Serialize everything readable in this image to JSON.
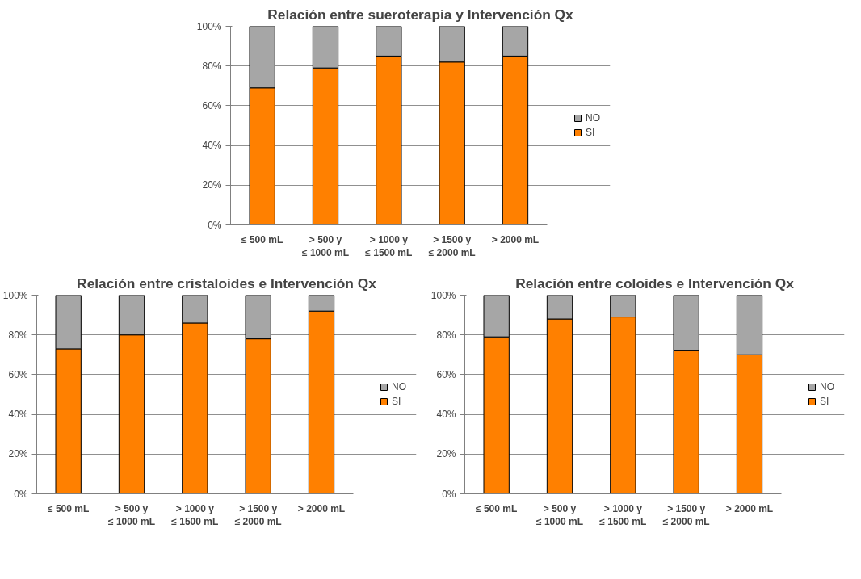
{
  "chart_data": [
    {
      "type": "bar",
      "title": "Relación entre sueroterapia y Intervención Qx",
      "categories": [
        "≤ 500 mL",
        "> 500 y\n≤ 1000 mL",
        "> 1000 y\n≤ 1500 mL",
        "> 1500 y\n≤ 2000 mL",
        "> 2000 mL"
      ],
      "stacked": true,
      "series": [
        {
          "name": "SI",
          "color": "#ff8000",
          "values": [
            69,
            79,
            85,
            82,
            85
          ]
        },
        {
          "name": "NO",
          "color": "#a6a6a6",
          "values": [
            31,
            21,
            15,
            18,
            15
          ]
        }
      ],
      "ylim": [
        0,
        100
      ],
      "yticks": [
        {
          "value": 0,
          "label": "0%"
        },
        {
          "value": 20,
          "label": "20%"
        },
        {
          "value": 40,
          "label": "40%"
        },
        {
          "value": 60,
          "label": "60%"
        },
        {
          "value": 80,
          "label": "80%"
        },
        {
          "value": 100,
          "label": "100%"
        }
      ],
      "grid": "y",
      "legend": "right"
    },
    {
      "type": "bar",
      "title": "Relación entre cristaloides e Intervención Qx",
      "categories": [
        "≤ 500 mL",
        "> 500 y\n≤ 1000 mL",
        "> 1000 y\n≤ 1500 mL",
        "> 1500 y\n≤ 2000 mL",
        "> 2000 mL"
      ],
      "stacked": true,
      "series": [
        {
          "name": "SI",
          "color": "#ff8000",
          "values": [
            73,
            80,
            86,
            78,
            92
          ]
        },
        {
          "name": "NO",
          "color": "#a6a6a6",
          "values": [
            27,
            20,
            14,
            22,
            8
          ]
        }
      ],
      "ylim": [
        0,
        100
      ],
      "yticks": [
        {
          "value": 0,
          "label": "0%"
        },
        {
          "value": 20,
          "label": "20%"
        },
        {
          "value": 40,
          "label": "40%"
        },
        {
          "value": 60,
          "label": "60%"
        },
        {
          "value": 80,
          "label": "80%"
        },
        {
          "value": 100,
          "label": "100%"
        }
      ],
      "grid": "y",
      "legend": "right"
    },
    {
      "type": "bar",
      "title": "Relación entre coloides e Intervención Qx",
      "categories": [
        "≤ 500 mL",
        "> 500 y\n≤ 1000 mL",
        "> 1000 y\n≤ 1500 mL",
        "> 1500 y\n≤ 2000 mL",
        "> 2000 mL"
      ],
      "stacked": true,
      "series": [
        {
          "name": "SI",
          "color": "#ff8000",
          "values": [
            79,
            88,
            89,
            72,
            70
          ]
        },
        {
          "name": "NO",
          "color": "#a6a6a6",
          "values": [
            21,
            12,
            11,
            28,
            30
          ]
        }
      ],
      "ylim": [
        0,
        100
      ],
      "yticks": [
        {
          "value": 0,
          "label": "0%"
        },
        {
          "value": 20,
          "label": "20%"
        },
        {
          "value": 40,
          "label": "40%"
        },
        {
          "value": 60,
          "label": "60%"
        },
        {
          "value": 80,
          "label": "80%"
        },
        {
          "value": 100,
          "label": "100%"
        }
      ],
      "grid": "y",
      "legend": "right"
    }
  ]
}
